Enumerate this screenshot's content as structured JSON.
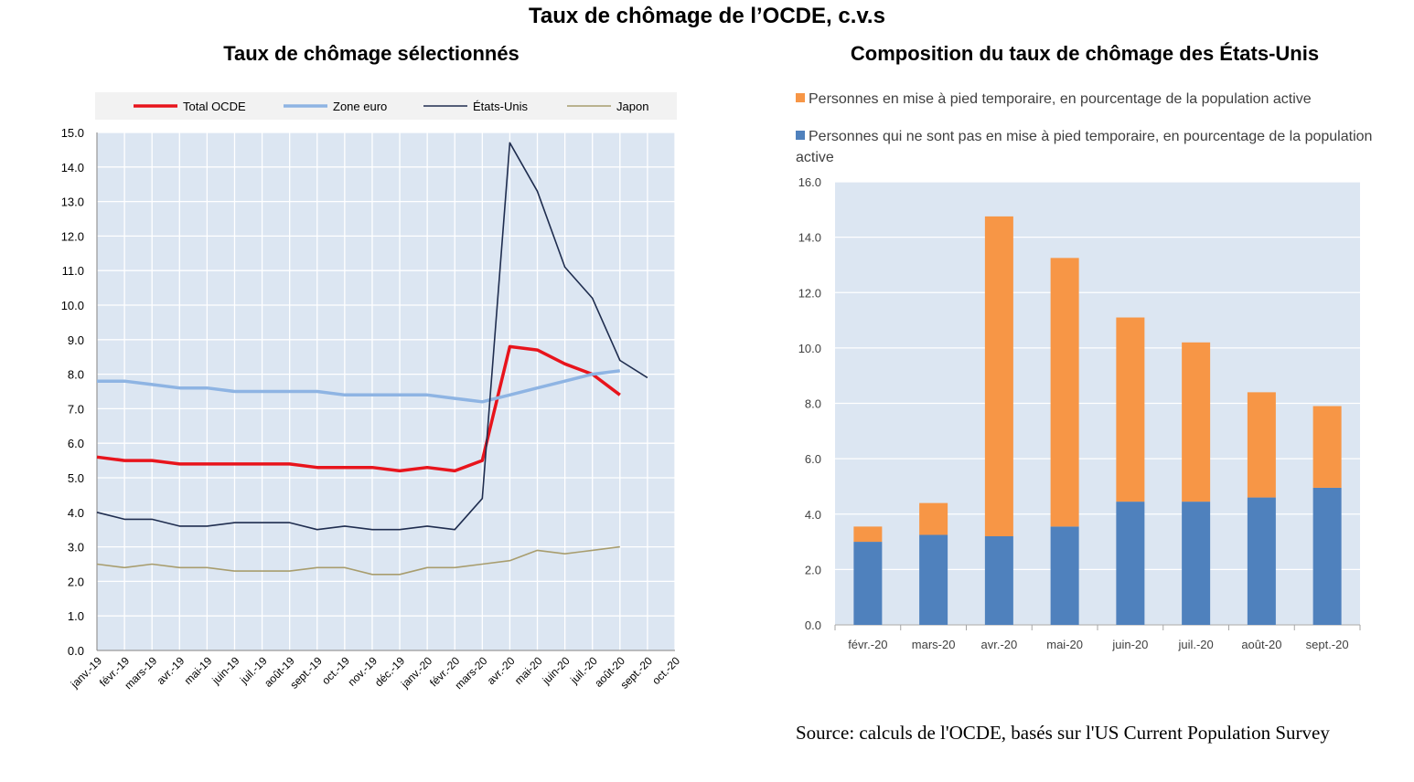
{
  "page_title": "Taux de chômage de l’OCDE, c.v.s",
  "source_note": "Source: calculs de l'OCDE, basés sur l'US Current Population Survey",
  "chart_data": [
    {
      "type": "line",
      "title": "Taux de chômage sélectionnés",
      "ylim": [
        0,
        15
      ],
      "yticks": [
        "0.0",
        "1.0",
        "2.0",
        "3.0",
        "4.0",
        "5.0",
        "6.0",
        "7.0",
        "8.0",
        "9.0",
        "10.0",
        "11.0",
        "12.0",
        "13.0",
        "14.0",
        "15.0"
      ],
      "grid": true,
      "legend_position": "top",
      "categories": [
        "janv.-19",
        "févr.-19",
        "mars-19",
        "avr.-19",
        "mai-19",
        "juin-19",
        "juil.-19",
        "août-19",
        "sept.-19",
        "oct.-19",
        "nov.-19",
        "déc.-19",
        "janv.-20",
        "févr.-20",
        "mars-20",
        "avr.-20",
        "mai-20",
        "juin-20",
        "juil.-20",
        "août-20",
        "sept.-20",
        "oct.-20"
      ],
      "series": [
        {
          "name": "Total OCDE",
          "color": "#e8141c",
          "values": [
            5.6,
            5.5,
            5.5,
            5.4,
            5.4,
            5.4,
            5.4,
            5.4,
            5.3,
            5.3,
            5.3,
            5.2,
            5.3,
            5.2,
            5.5,
            8.8,
            8.7,
            8.3,
            8.0,
            7.4,
            null,
            null
          ]
        },
        {
          "name": "Zone euro",
          "color": "#8eb4e3",
          "values": [
            7.8,
            7.8,
            7.7,
            7.6,
            7.6,
            7.5,
            7.5,
            7.5,
            7.5,
            7.4,
            7.4,
            7.4,
            7.4,
            7.3,
            7.2,
            7.4,
            7.6,
            7.8,
            8.0,
            8.1,
            null,
            null
          ]
        },
        {
          "name": "États-Unis",
          "color": "#1f2d4f",
          "values": [
            4.0,
            3.8,
            3.8,
            3.6,
            3.6,
            3.7,
            3.7,
            3.7,
            3.5,
            3.6,
            3.5,
            3.5,
            3.6,
            3.5,
            4.4,
            14.7,
            13.3,
            11.1,
            10.2,
            8.4,
            7.9,
            null
          ]
        },
        {
          "name": "Japon",
          "color": "#a89d6e",
          "values": [
            2.5,
            2.4,
            2.5,
            2.4,
            2.4,
            2.3,
            2.3,
            2.3,
            2.4,
            2.4,
            2.2,
            2.2,
            2.4,
            2.4,
            2.5,
            2.6,
            2.9,
            2.8,
            2.9,
            3.0,
            null,
            null
          ]
        }
      ]
    },
    {
      "type": "bar",
      "stacked": true,
      "title": "Composition du taux de chômage des États-Unis",
      "ylim": [
        0,
        16
      ],
      "yticks": [
        "0.0",
        "2.0",
        "4.0",
        "6.0",
        "8.0",
        "10.0",
        "12.0",
        "14.0",
        "16.0"
      ],
      "grid": true,
      "legend_position": "top",
      "categories": [
        "févr.-20",
        "mars-20",
        "avr.-20",
        "mai-20",
        "juin-20",
        "juil.-20",
        "août-20",
        "sept.-20"
      ],
      "series": [
        {
          "name": "Personnes qui ne sont pas en mise à pied temporaire, en pourcentage de la population active",
          "color": "#4f81bd",
          "values": [
            3.0,
            3.25,
            3.2,
            3.55,
            4.45,
            4.45,
            4.6,
            4.95
          ]
        },
        {
          "name": "Personnes en mise à pied temporaire, en pourcentage de la population active",
          "color": "#f79646",
          "values": [
            0.55,
            1.15,
            11.55,
            9.7,
            6.65,
            5.75,
            3.8,
            2.95
          ]
        }
      ]
    }
  ]
}
